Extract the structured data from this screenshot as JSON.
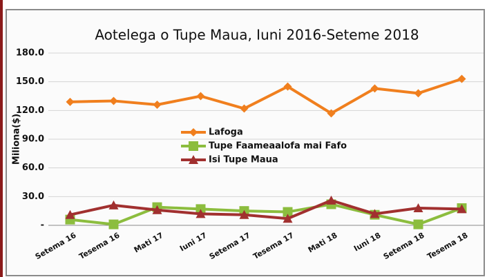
{
  "chart_data": {
    "type": "line",
    "title": "Aotelega o Tupe Maua, Iuni 2016-Seteme 2018",
    "y_label": "Miliona($)",
    "categories": [
      "Setema 16",
      "Tesema 16",
      "Mati 17",
      "Iuni 17",
      "Setema 17",
      "Tesema 17",
      "Mati 18",
      "Iuni 18",
      "Setema 18",
      "Tesema 18"
    ],
    "series": [
      {
        "name": "Lafoga",
        "color": "#f07f1e",
        "marker": "diamond",
        "values": [
          129,
          130,
          126,
          135,
          122,
          145,
          117,
          143,
          138,
          153
        ]
      },
      {
        "name": "Tupe Faameaalofa mai Fafo",
        "color": "#8cbd3e",
        "marker": "square",
        "values": [
          6,
          1,
          19,
          17,
          15,
          14,
          22,
          11,
          1,
          18
        ]
      },
      {
        "name": "Isi Tupe Maua",
        "color": "#a1302f",
        "marker": "triangle",
        "values": [
          11,
          21,
          16,
          12,
          11,
          7,
          26,
          12,
          18,
          17
        ]
      }
    ],
    "ylim": [
      0,
      180
    ],
    "yticks": [
      {
        "value": 0,
        "label": "-"
      },
      {
        "value": 30,
        "label": "30.0"
      },
      {
        "value": 60,
        "label": "60.0"
      },
      {
        "value": 90,
        "label": "90.0"
      },
      {
        "value": 120,
        "label": "120.0"
      },
      {
        "value": 150,
        "label": "150.0"
      },
      {
        "value": 180,
        "label": "180.0"
      }
    ],
    "grid": true
  }
}
